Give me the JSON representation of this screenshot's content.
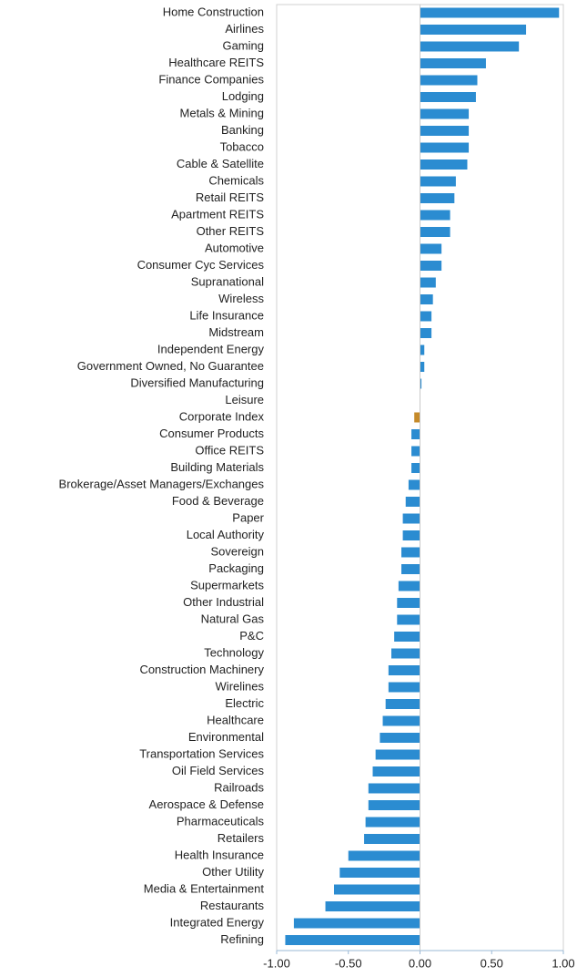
{
  "chart_data": {
    "type": "barh",
    "categories": [
      "Home Construction",
      "Airlines",
      "Gaming",
      "Healthcare REITS",
      "Finance Companies",
      "Lodging",
      "Metals & Mining",
      "Banking",
      "Tobacco",
      "Cable & Satellite",
      "Chemicals",
      "Retail REITS",
      "Apartment REITS",
      "Other REITS",
      "Automotive",
      "Consumer Cyc Services",
      "Supranational",
      "Wireless",
      "Life Insurance",
      "Midstream",
      "Independent Energy",
      "Government Owned, No Guarantee",
      "Diversified Manufacturing",
      "Leisure",
      "Corporate Index",
      "Consumer Products",
      "Office REITS",
      "Building Materials",
      "Brokerage/Asset Managers/Exchanges",
      "Food & Beverage",
      "Paper",
      "Local Authority",
      "Sovereign",
      "Packaging",
      "Supermarkets",
      "Other Industrial",
      "Natural Gas",
      "P&C",
      "Technology",
      "Construction Machinery",
      "Wirelines",
      "Electric",
      "Healthcare",
      "Environmental",
      "Transportation Services",
      "Oil Field Services",
      "Railroads",
      "Aerospace & Defense",
      "Pharmaceuticals",
      "Retailers",
      "Health Insurance",
      "Other Utility",
      "Media & Entertainment",
      "Restaurants",
      "Integrated Energy",
      "Refining"
    ],
    "values": [
      0.97,
      0.74,
      0.69,
      0.46,
      0.4,
      0.39,
      0.34,
      0.34,
      0.34,
      0.33,
      0.25,
      0.24,
      0.21,
      0.21,
      0.15,
      0.15,
      0.11,
      0.09,
      0.08,
      0.08,
      0.03,
      0.03,
      0.01,
      0,
      -0.04,
      -0.06,
      -0.06,
      -0.06,
      -0.08,
      -0.1,
      -0.12,
      -0.12,
      -0.13,
      -0.13,
      -0.15,
      -0.16,
      -0.16,
      -0.18,
      -0.2,
      -0.22,
      -0.22,
      -0.24,
      -0.26,
      -0.28,
      -0.31,
      -0.33,
      -0.36,
      -0.36,
      -0.38,
      -0.39,
      -0.5,
      -0.56,
      -0.6,
      -0.66,
      -0.88,
      -0.94
    ],
    "color": "#2b8cd1",
    "highlight_index": 24,
    "highlight_color": "#c58a2a",
    "xlim": [
      -1,
      1
    ],
    "xticks": [
      {
        "value": -1,
        "label": "-1.00"
      },
      {
        "value": -0.5,
        "label": "-0.50"
      },
      {
        "value": 0,
        "label": "0.00"
      },
      {
        "value": 0.5,
        "label": "0.50"
      },
      {
        "value": 1,
        "label": "1.00"
      }
    ]
  }
}
